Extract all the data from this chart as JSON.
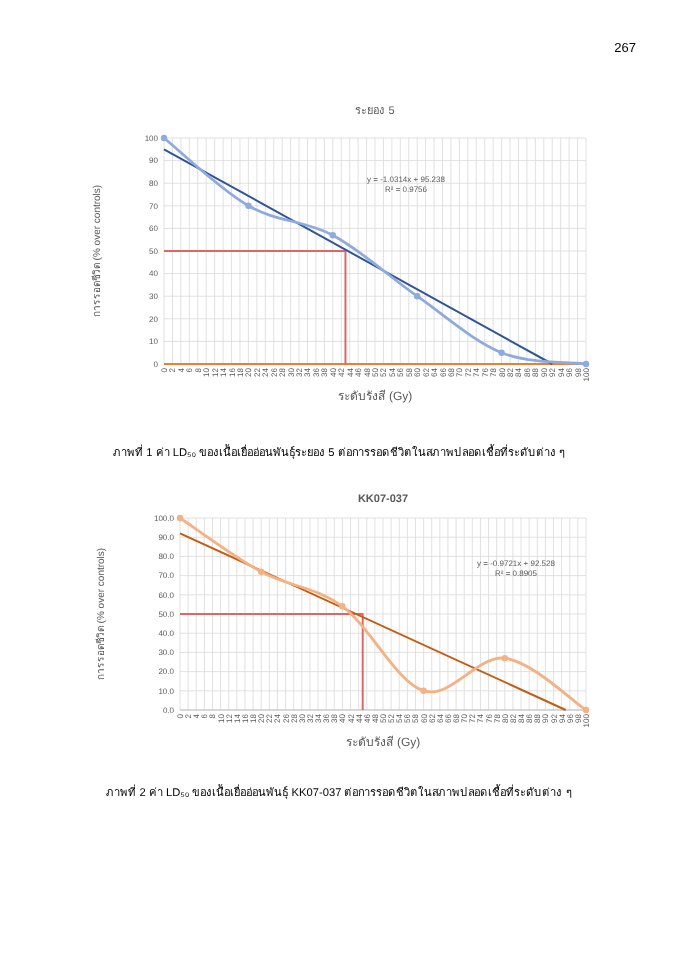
{
  "chart_data": [
    {
      "type": "line",
      "title": "ระยอง 5",
      "xlabel": "ระดับรังสี (Gy)",
      "ylabel": "การรอดชีวิต (% over controls)",
      "xlim": [
        0,
        100
      ],
      "xticks": [
        0,
        2,
        4,
        6,
        8,
        10,
        12,
        14,
        16,
        18,
        20,
        22,
        24,
        26,
        28,
        30,
        32,
        34,
        36,
        38,
        40,
        42,
        44,
        46,
        48,
        50,
        52,
        54,
        56,
        58,
        60,
        62,
        64,
        66,
        68,
        70,
        72,
        74,
        76,
        78,
        80,
        82,
        84,
        86,
        88,
        90,
        92,
        94,
        96,
        98,
        100
      ],
      "ylim": [
        0,
        100
      ],
      "yticks": [
        0,
        10,
        20,
        30,
        40,
        50,
        60,
        70,
        80,
        90,
        100
      ],
      "grid": true,
      "series": [
        {
          "color": "#ed7d31",
          "x": [
            0,
            100
          ],
          "values": [
            0,
            0
          ],
          "marker": "none"
        },
        {
          "color": "#e06666",
          "x": [
            0,
            43,
            43
          ],
          "values": [
            50,
            50,
            0
          ],
          "marker": "none"
        },
        {
          "color": "#2f5597",
          "x": [
            0,
            92
          ],
          "values": [
            95,
            0
          ],
          "marker": "none"
        },
        {
          "color": "#8faadc",
          "x": [
            0,
            20,
            40,
            60,
            80,
            100
          ],
          "values": [
            100,
            70,
            57,
            30,
            5,
            0
          ],
          "marker": "circle"
        }
      ],
      "annotations": [
        "y = -1.0314x + 95.238",
        "R² = 0.9756",
        "ภาพที่ 1 ค่า LD₅₀ ของเนื้อเยื่ออ่อนพันธุ์ระยอง 5 ต่อการรอดชีวิตในสภาพปลอดเชื้อที่ระดับต่าง ๆ",
        "267"
      ]
    },
    {
      "type": "line",
      "title": "KK07-037",
      "xlabel": "ระดับรังสี (Gy)",
      "ylabel": "การรอดชีวิต (% over controls)",
      "xlim": [
        0,
        100
      ],
      "xticks": [
        0,
        2,
        4,
        6,
        8,
        10,
        12,
        14,
        16,
        18,
        20,
        22,
        24,
        26,
        28,
        30,
        32,
        34,
        36,
        38,
        40,
        42,
        44,
        46,
        48,
        50,
        52,
        54,
        56,
        58,
        60,
        62,
        64,
        66,
        68,
        70,
        72,
        74,
        76,
        78,
        80,
        82,
        84,
        86,
        88,
        90,
        92,
        94,
        96,
        98,
        100
      ],
      "ylim": [
        0,
        100
      ],
      "yticks": [
        {
          "value": 0,
          "label": "0.0"
        },
        {
          "value": 10,
          "label": "10.0"
        },
        {
          "value": 20,
          "label": "20.0"
        },
        {
          "value": 30,
          "label": "30.0"
        },
        {
          "value": 40,
          "label": "40.0"
        },
        {
          "value": 50,
          "label": "50.0"
        },
        {
          "value": 60,
          "label": "60.0"
        },
        {
          "value": 70,
          "label": "70.0"
        },
        {
          "value": 80,
          "label": "80.0"
        },
        {
          "value": 90,
          "label": "90.0"
        },
        {
          "value": 100,
          "label": "100.0"
        }
      ],
      "grid": true,
      "series": [
        {
          "color": "#e06666",
          "x": [
            0,
            45,
            45
          ],
          "values": [
            50,
            50,
            0
          ],
          "marker": "none"
        },
        {
          "color": "#c55a11",
          "x": [
            0,
            95
          ],
          "values": [
            92,
            0
          ],
          "marker": "none"
        },
        {
          "color": "#f4b183",
          "x": [
            0,
            20,
            40,
            60,
            80,
            100
          ],
          "values": [
            100,
            72,
            54,
            10,
            27,
            0
          ],
          "marker": "circle"
        }
      ],
      "annotations": [
        "y = -0.9721x + 92.528",
        "R² = 0.8905",
        "ภาพที่ 2 ค่า LD₅₀ ของเนื้อเยื่ออ่อนพันธุ์ KK07-037 ต่อการรอดชีวิตในสภาพปลอดเชื้อที่ระดับต่าง ๆ"
      ]
    }
  ]
}
